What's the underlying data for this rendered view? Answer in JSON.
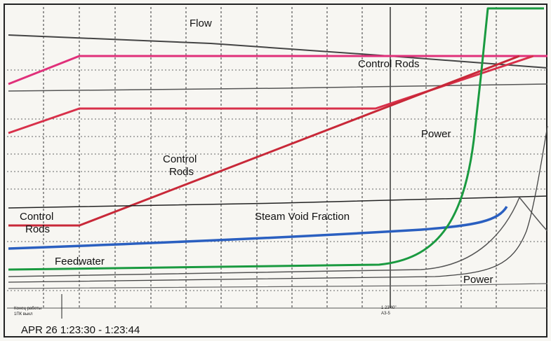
{
  "annotations": {
    "flow": "Flow",
    "control_rods_top": "Control Rods",
    "power_top": "Power",
    "control_rods_middle": [
      "Control",
      "Rods"
    ],
    "control_rods_left": [
      "Control",
      "Rods"
    ],
    "steam_void_fraction": "Steam Void Fraction",
    "feedwater": "Feedwater",
    "power_bottom": "Power"
  },
  "marks": {
    "left": [
      "Конец работы",
      "1ПК выкл"
    ],
    "right": [
      "1 23'40\"",
      "АЗ-5"
    ]
  },
  "caption": "APR 26  1:23:30 - 1:23:44"
}
